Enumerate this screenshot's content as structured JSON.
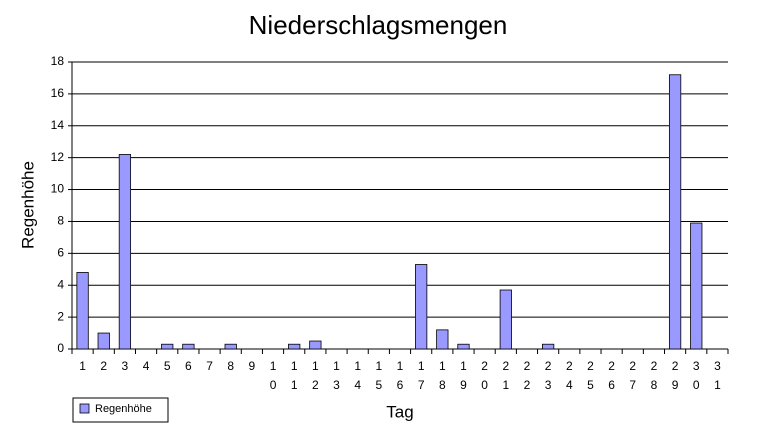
{
  "chart_data": {
    "type": "bar",
    "title": "Niederschlagsmengen",
    "x_label": "Tag",
    "y_label": "Regenhöhe",
    "categories": [
      "1",
      "2",
      "3",
      "4",
      "5",
      "6",
      "7",
      "8",
      "9",
      "10",
      "11",
      "12",
      "13",
      "14",
      "15",
      "16",
      "17",
      "18",
      "19",
      "20",
      "21",
      "22",
      "23",
      "24",
      "25",
      "26",
      "27",
      "28",
      "29",
      "30",
      "31"
    ],
    "series": [
      {
        "name": "Regenhöhe",
        "color": "#9999ff",
        "values": [
          4.8,
          1.0,
          12.2,
          0,
          0.3,
          0.3,
          0,
          0.3,
          0,
          0,
          0.3,
          0.5,
          0,
          0,
          0,
          0,
          5.3,
          1.2,
          0.3,
          0,
          3.7,
          0,
          0.3,
          0,
          0,
          0,
          0,
          0,
          17.2,
          7.9,
          0
        ]
      }
    ],
    "ylim": [
      0,
      18
    ],
    "yticks": [
      0,
      2,
      4,
      6,
      8,
      10,
      12,
      14,
      16,
      18
    ],
    "grid": true,
    "legend": "bottom-left"
  }
}
